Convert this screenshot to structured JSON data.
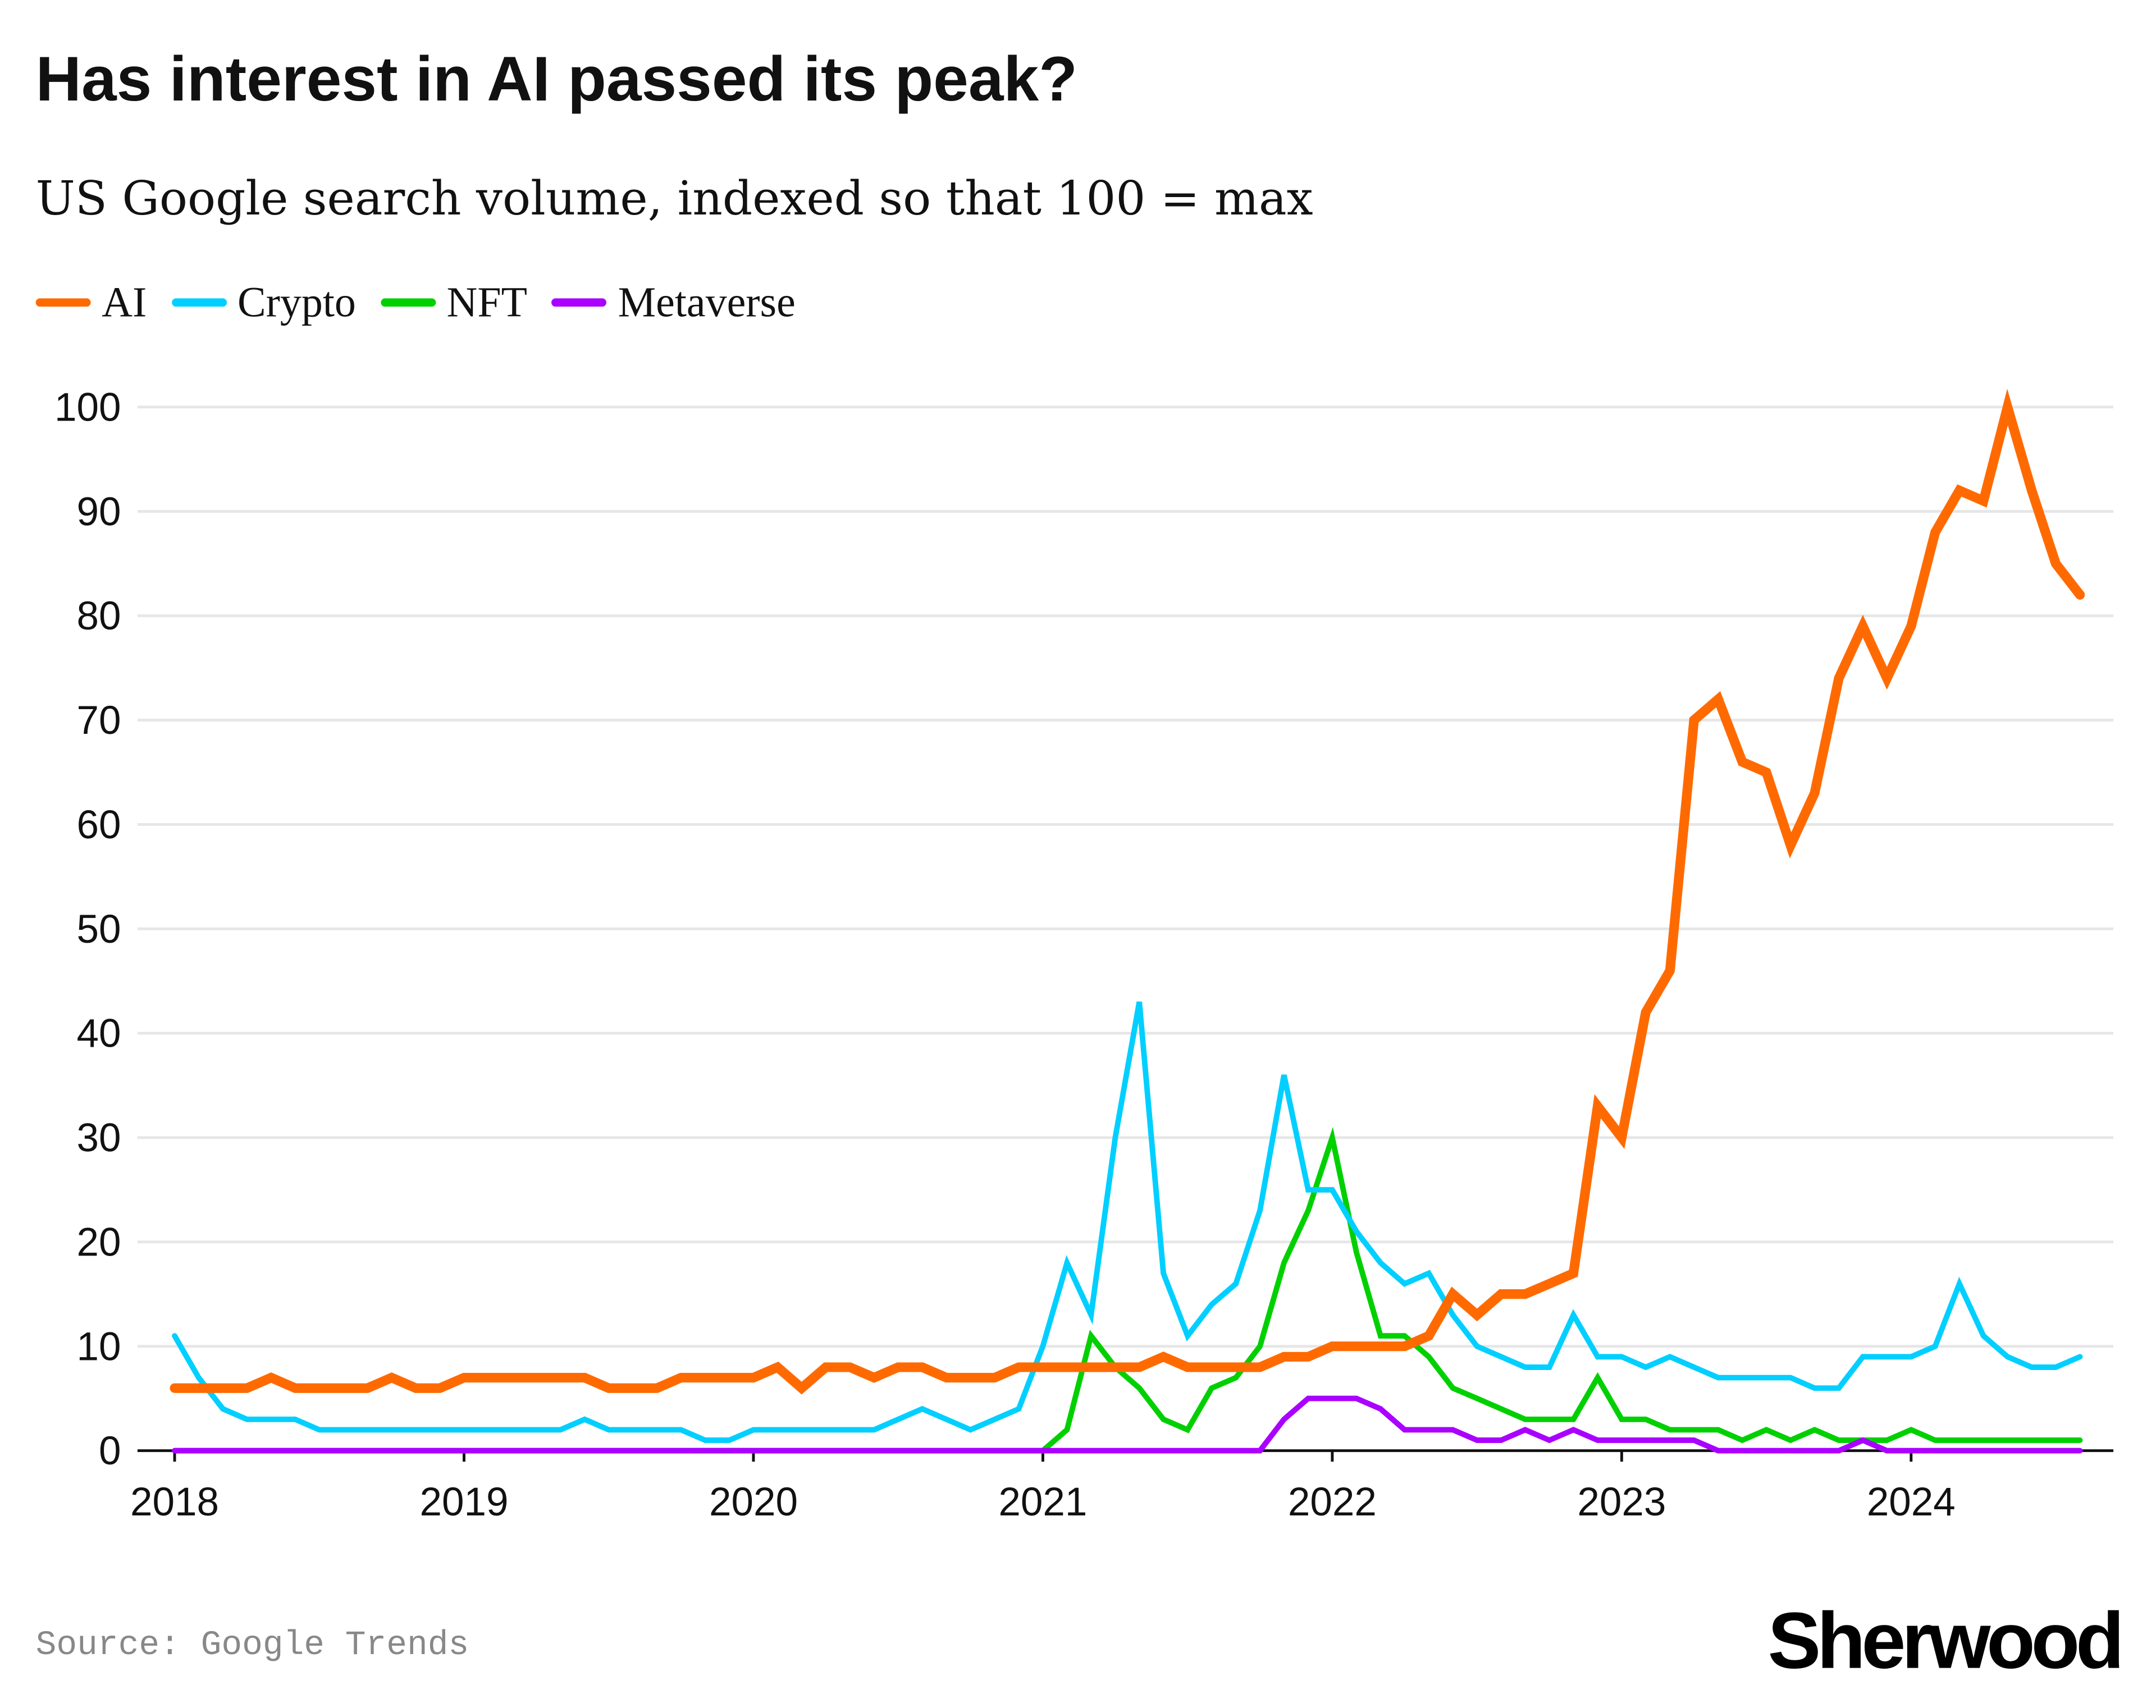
{
  "title": "Has interest in AI passed its peak?",
  "subtitle": "US Google search volume, indexed so that 100 = max",
  "source": "Source: Google Trends",
  "logo": "Sherwood",
  "chart_data": {
    "type": "line",
    "title": "Has interest in AI passed its peak?",
    "subtitle": "US Google search volume, indexed so that 100 = max",
    "x_start": "2018-01",
    "x_end": "2024-08",
    "frequency": "monthly",
    "xticks": [
      "2018",
      "2019",
      "2020",
      "2021",
      "2022",
      "2023",
      "2024"
    ],
    "yticks": [
      "0",
      "10",
      "20",
      "30",
      "40",
      "50",
      "60",
      "70",
      "80",
      "90",
      "100"
    ],
    "ylim": [
      0,
      100
    ],
    "grid": true,
    "legend": "top-left",
    "series": [
      {
        "name": "AI",
        "color": "#ff6a00",
        "values": [
          6,
          6,
          6,
          6,
          7,
          6,
          6,
          6,
          6,
          7,
          6,
          6,
          7,
          7,
          7,
          7,
          7,
          7,
          6,
          6,
          6,
          7,
          7,
          7,
          7,
          8,
          6,
          8,
          8,
          7,
          8,
          8,
          7,
          7,
          7,
          8,
          8,
          8,
          8,
          8,
          8,
          9,
          8,
          8,
          8,
          8,
          9,
          9,
          10,
          10,
          10,
          10,
          11,
          15,
          13,
          15,
          15,
          16,
          17,
          33,
          30,
          42,
          46,
          70,
          72,
          66,
          65,
          58,
          63,
          74,
          79,
          74,
          79,
          88,
          92,
          91,
          100,
          92,
          85,
          82
        ]
      },
      {
        "name": "Crypto",
        "color": "#00cfff",
        "values": [
          11,
          7,
          4,
          3,
          3,
          3,
          2,
          2,
          2,
          2,
          2,
          2,
          2,
          2,
          2,
          2,
          2,
          3,
          2,
          2,
          2,
          2,
          1,
          1,
          2,
          2,
          2,
          2,
          2,
          2,
          3,
          4,
          3,
          2,
          3,
          4,
          10,
          18,
          13,
          30,
          43,
          17,
          11,
          14,
          16,
          23,
          36,
          25,
          25,
          21,
          18,
          16,
          17,
          13,
          10,
          9,
          8,
          8,
          13,
          9,
          9,
          8,
          9,
          8,
          7,
          7,
          7,
          7,
          6,
          6,
          9,
          9,
          9,
          10,
          16,
          11,
          9,
          8,
          8,
          9
        ]
      },
      {
        "name": "NFT",
        "color": "#00d000",
        "values": [
          0,
          0,
          0,
          0,
          0,
          0,
          0,
          0,
          0,
          0,
          0,
          0,
          0,
          0,
          0,
          0,
          0,
          0,
          0,
          0,
          0,
          0,
          0,
          0,
          0,
          0,
          0,
          0,
          0,
          0,
          0,
          0,
          0,
          0,
          0,
          0,
          0,
          2,
          11,
          8,
          6,
          3,
          2,
          6,
          7,
          10,
          18,
          23,
          30,
          19,
          11,
          11,
          9,
          6,
          5,
          4,
          3,
          3,
          3,
          7,
          3,
          3,
          2,
          2,
          2,
          1,
          2,
          1,
          2,
          1,
          1,
          1,
          2,
          1,
          1,
          1,
          1,
          1,
          1,
          1
        ]
      },
      {
        "name": "Metaverse",
        "color": "#aa00ff",
        "values": [
          0,
          0,
          0,
          0,
          0,
          0,
          0,
          0,
          0,
          0,
          0,
          0,
          0,
          0,
          0,
          0,
          0,
          0,
          0,
          0,
          0,
          0,
          0,
          0,
          0,
          0,
          0,
          0,
          0,
          0,
          0,
          0,
          0,
          0,
          0,
          0,
          0,
          0,
          0,
          0,
          0,
          0,
          0,
          0,
          0,
          0,
          3,
          5,
          5,
          5,
          4,
          2,
          2,
          2,
          1,
          1,
          2,
          1,
          2,
          1,
          1,
          1,
          1,
          1,
          0,
          0,
          0,
          0,
          0,
          0,
          1,
          0,
          0,
          0,
          0,
          0,
          0,
          0,
          0,
          0
        ]
      }
    ]
  }
}
